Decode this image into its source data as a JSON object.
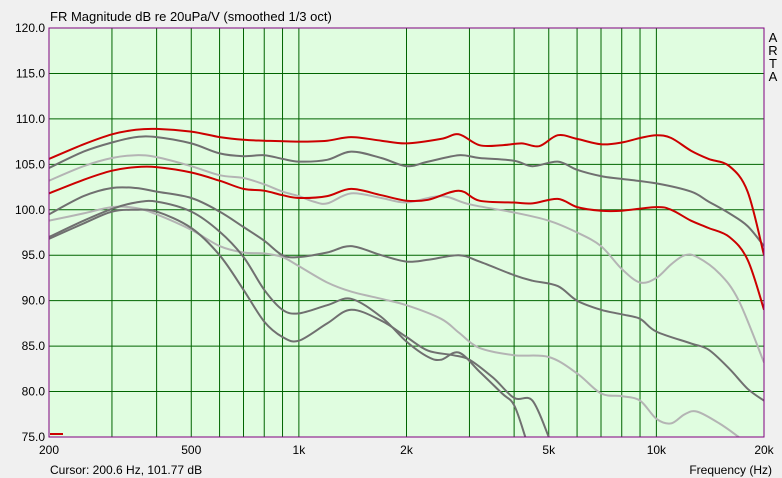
{
  "chart_data": {
    "type": "line",
    "title": "FR Magnitude dB re 20uPa/V (smoothed 1/3 oct)",
    "xlabel": "Frequency (Hz)",
    "xscale": "log",
    "xlim": [
      200,
      20000
    ],
    "ylim": [
      75,
      120
    ],
    "grid": true,
    "xticks": [
      {
        "value": 200,
        "label": "200"
      },
      {
        "value": 500,
        "label": "500"
      },
      {
        "value": 1000,
        "label": "1k"
      },
      {
        "value": 2000,
        "label": "2k"
      },
      {
        "value": 5000,
        "label": "5k"
      },
      {
        "value": 10000,
        "label": "10k"
      },
      {
        "value": 20000,
        "label": "20k"
      }
    ],
    "yticks": [
      75,
      80,
      85,
      90,
      95,
      100,
      105,
      110,
      115,
      120
    ],
    "ytick_labels": [
      "75.0",
      "80.0",
      "85.0",
      "90.0",
      "95.0",
      "100.0",
      "105.0",
      "110.0",
      "115.0",
      "120.0"
    ],
    "colors": {
      "plot_background": "#e0fde0",
      "grid": "#006400",
      "frame": "#800080",
      "red": "#cc0000",
      "dark_gray": "#707070",
      "light_gray": "#b4b4b4"
    },
    "series": [
      {
        "color": "red",
        "points": [
          [
            200,
            105.6
          ],
          [
            250,
            107.2
          ],
          [
            300,
            108.3
          ],
          [
            350,
            108.8
          ],
          [
            400,
            108.9
          ],
          [
            500,
            108.6
          ],
          [
            600,
            108.0
          ],
          [
            700,
            107.7
          ],
          [
            800,
            107.6
          ],
          [
            1000,
            107.5
          ],
          [
            1200,
            107.6
          ],
          [
            1400,
            108.0
          ],
          [
            1700,
            107.6
          ],
          [
            2000,
            107.3
          ],
          [
            2500,
            107.8
          ],
          [
            2800,
            108.3
          ],
          [
            3200,
            107.1
          ],
          [
            3700,
            107.1
          ],
          [
            4200,
            107.3
          ],
          [
            4700,
            107.0
          ],
          [
            5300,
            108.2
          ],
          [
            6000,
            107.8
          ],
          [
            7000,
            107.2
          ],
          [
            8000,
            107.4
          ],
          [
            9000,
            107.9
          ],
          [
            10000,
            108.2
          ],
          [
            11000,
            107.9
          ],
          [
            12500,
            106.5
          ],
          [
            14000,
            105.6
          ],
          [
            16000,
            104.8
          ],
          [
            18000,
            102.0
          ],
          [
            20000,
            95.0
          ]
        ]
      },
      {
        "color": "red",
        "points": [
          [
            200,
            101.8
          ],
          [
            250,
            103.3
          ],
          [
            300,
            104.3
          ],
          [
            350,
            104.7
          ],
          [
            400,
            104.7
          ],
          [
            500,
            104.1
          ],
          [
            600,
            103.2
          ],
          [
            700,
            102.3
          ],
          [
            800,
            102.1
          ],
          [
            900,
            101.6
          ],
          [
            1000,
            101.3
          ],
          [
            1200,
            101.5
          ],
          [
            1400,
            102.3
          ],
          [
            1700,
            101.6
          ],
          [
            2000,
            101.0
          ],
          [
            2300,
            101.1
          ],
          [
            2800,
            102.1
          ],
          [
            3200,
            101.0
          ],
          [
            4000,
            100.8
          ],
          [
            4500,
            100.7
          ],
          [
            5300,
            101.2
          ],
          [
            6000,
            100.3
          ],
          [
            7000,
            99.9
          ],
          [
            8000,
            99.9
          ],
          [
            10000,
            100.3
          ],
          [
            11000,
            100.0
          ],
          [
            12500,
            98.8
          ],
          [
            14000,
            98.0
          ],
          [
            16000,
            97.0
          ],
          [
            18000,
            94.5
          ],
          [
            20000,
            89.0
          ]
        ]
      },
      {
        "color": "dark_gray",
        "points": [
          [
            200,
            104.6
          ],
          [
            250,
            106.4
          ],
          [
            300,
            107.4
          ],
          [
            350,
            108.0
          ],
          [
            400,
            108.0
          ],
          [
            500,
            107.3
          ],
          [
            600,
            106.2
          ],
          [
            700,
            105.9
          ],
          [
            800,
            106.0
          ],
          [
            900,
            105.6
          ],
          [
            1000,
            105.3
          ],
          [
            1200,
            105.5
          ],
          [
            1400,
            106.4
          ],
          [
            1700,
            105.7
          ],
          [
            2000,
            104.8
          ],
          [
            2300,
            105.3
          ],
          [
            2800,
            106.0
          ],
          [
            3200,
            105.7
          ],
          [
            4000,
            105.4
          ],
          [
            4500,
            104.8
          ],
          [
            5300,
            105.3
          ],
          [
            6000,
            104.4
          ],
          [
            7000,
            103.7
          ],
          [
            8000,
            103.4
          ],
          [
            10000,
            102.9
          ],
          [
            12500,
            102.0
          ],
          [
            14000,
            100.9
          ],
          [
            16000,
            99.6
          ],
          [
            18000,
            98.2
          ],
          [
            20000,
            96.0
          ]
        ]
      },
      {
        "color": "dark_gray",
        "points": [
          [
            200,
            99.5
          ],
          [
            250,
            101.5
          ],
          [
            300,
            102.4
          ],
          [
            350,
            102.4
          ],
          [
            400,
            102.0
          ],
          [
            500,
            101.3
          ],
          [
            600,
            99.8
          ],
          [
            700,
            98.1
          ],
          [
            800,
            96.6
          ],
          [
            900,
            95.0
          ],
          [
            1000,
            94.8
          ],
          [
            1200,
            95.3
          ],
          [
            1400,
            96.0
          ],
          [
            1700,
            95.0
          ],
          [
            2000,
            94.3
          ],
          [
            2300,
            94.5
          ],
          [
            2800,
            95.0
          ],
          [
            3200,
            94.3
          ],
          [
            4000,
            92.8
          ],
          [
            4500,
            92.2
          ],
          [
            5300,
            91.6
          ],
          [
            6000,
            90.0
          ],
          [
            7000,
            89.0
          ],
          [
            8000,
            88.5
          ],
          [
            9000,
            88.0
          ],
          [
            10000,
            86.6
          ],
          [
            12500,
            85.3
          ],
          [
            14000,
            84.6
          ],
          [
            16000,
            82.5
          ],
          [
            18000,
            80.3
          ],
          [
            20000,
            79.0
          ]
        ]
      },
      {
        "color": "dark_gray",
        "points": [
          [
            200,
            97.0
          ],
          [
            250,
            98.8
          ],
          [
            300,
            100.1
          ],
          [
            350,
            100.8
          ],
          [
            400,
            100.9
          ],
          [
            500,
            99.8
          ],
          [
            600,
            97.6
          ],
          [
            700,
            94.8
          ],
          [
            800,
            91.2
          ],
          [
            900,
            89.0
          ],
          [
            1000,
            88.6
          ],
          [
            1200,
            89.5
          ],
          [
            1400,
            90.2
          ],
          [
            1700,
            88.2
          ],
          [
            2000,
            85.5
          ],
          [
            2300,
            83.8
          ],
          [
            2500,
            83.5
          ],
          [
            2800,
            84.3
          ],
          [
            3200,
            82.2
          ],
          [
            3700,
            79.8
          ],
          [
            4000,
            78.5
          ],
          [
            4300,
            75.0
          ]
        ]
      },
      {
        "color": "dark_gray",
        "points": [
          [
            200,
            96.8
          ],
          [
            250,
            98.5
          ],
          [
            300,
            99.8
          ],
          [
            350,
            100.0
          ],
          [
            400,
            99.8
          ],
          [
            500,
            98.0
          ],
          [
            600,
            95.0
          ],
          [
            700,
            91.2
          ],
          [
            800,
            87.7
          ],
          [
            900,
            86.0
          ],
          [
            1000,
            85.6
          ],
          [
            1200,
            87.5
          ],
          [
            1400,
            89.0
          ],
          [
            1700,
            87.8
          ],
          [
            2000,
            86.0
          ],
          [
            2300,
            84.5
          ],
          [
            2700,
            84.0
          ],
          [
            3000,
            83.5
          ],
          [
            3500,
            81.5
          ],
          [
            4000,
            79.3
          ],
          [
            4500,
            79.0
          ],
          [
            5000,
            75.0
          ]
        ]
      },
      {
        "color": "light_gray",
        "points": [
          [
            200,
            103.2
          ],
          [
            250,
            104.8
          ],
          [
            300,
            105.7
          ],
          [
            350,
            106.0
          ],
          [
            400,
            105.8
          ],
          [
            500,
            104.8
          ],
          [
            600,
            103.8
          ],
          [
            700,
            103.5
          ],
          [
            800,
            102.8
          ],
          [
            900,
            102.0
          ],
          [
            1000,
            101.5
          ],
          [
            1100,
            100.9
          ],
          [
            1200,
            100.7
          ],
          [
            1400,
            101.8
          ],
          [
            1700,
            101.3
          ],
          [
            2000,
            100.8
          ],
          [
            2500,
            101.5
          ],
          [
            3000,
            100.6
          ],
          [
            4000,
            99.7
          ],
          [
            5000,
            98.8
          ],
          [
            6000,
            97.5
          ],
          [
            7000,
            96.0
          ],
          [
            8000,
            93.5
          ],
          [
            9000,
            92.0
          ],
          [
            10000,
            92.5
          ],
          [
            11000,
            94.0
          ],
          [
            12000,
            95.0
          ],
          [
            13000,
            94.8
          ],
          [
            15000,
            93.0
          ],
          [
            17000,
            90.0
          ],
          [
            20000,
            83.2
          ]
        ]
      },
      {
        "color": "light_gray",
        "points": [
          [
            200,
            98.8
          ],
          [
            250,
            99.6
          ],
          [
            300,
            100.3
          ],
          [
            350,
            100.2
          ],
          [
            400,
            99.5
          ],
          [
            500,
            97.8
          ],
          [
            600,
            96.0
          ],
          [
            700,
            95.3
          ],
          [
            800,
            95.2
          ],
          [
            900,
            94.8
          ],
          [
            1000,
            93.8
          ],
          [
            1200,
            92.0
          ],
          [
            1400,
            91.0
          ],
          [
            1700,
            90.2
          ],
          [
            2000,
            89.5
          ],
          [
            2500,
            88.0
          ],
          [
            2800,
            86.5
          ],
          [
            3200,
            84.8
          ],
          [
            4000,
            84.0
          ],
          [
            5000,
            83.8
          ],
          [
            6000,
            82.0
          ],
          [
            7000,
            79.8
          ],
          [
            8000,
            79.5
          ],
          [
            9000,
            79.0
          ],
          [
            10000,
            77.0
          ],
          [
            11000,
            76.5
          ],
          [
            12000,
            77.5
          ],
          [
            13000,
            77.8
          ],
          [
            15000,
            76.5
          ],
          [
            17000,
            75.0
          ]
        ]
      }
    ]
  },
  "header": {
    "title": "FR Magnitude dB re 20uPa/V (smoothed 1/3 oct)",
    "brand": "ARTA"
  },
  "footer": {
    "cursor_text": "Cursor: 200.6 Hz, 101.77 dB",
    "xlabel": "Frequency (Hz)"
  }
}
